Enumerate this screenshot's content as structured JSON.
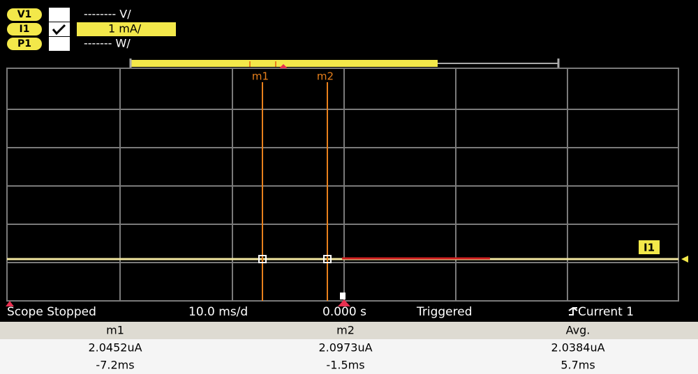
{
  "channels": [
    {
      "label": "V1",
      "scale": "-------- V/"
    },
    {
      "label": "I1",
      "scale": "1 mA/"
    },
    {
      "label": "P1",
      "scale": "------- W/"
    }
  ],
  "markers": [
    {
      "label": "m1"
    },
    {
      "label": "m2"
    }
  ],
  "trace_label": "I1",
  "status": {
    "state": "Scope Stopped",
    "timebase": "10.0 ms/d",
    "offset": "0.000 s",
    "trigger": "Triggered",
    "source": "Current 1"
  },
  "table": {
    "header": [
      "m1",
      "m2",
      "Avg."
    ],
    "rows": [
      [
        "2.0452uA",
        "2.0973uA",
        "2.0384uA"
      ],
      [
        "-7.2ms",
        "-1.5ms",
        "5.7ms"
      ]
    ]
  }
}
